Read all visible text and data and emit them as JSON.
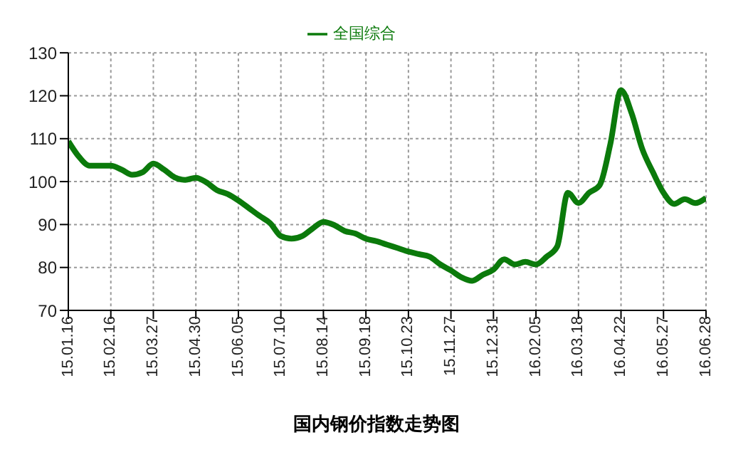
{
  "chart_data": {
    "type": "line",
    "title": "国内钢价指数走势图",
    "categories": [
      "15.01.16",
      null,
      null,
      null,
      "15.02.16",
      null,
      null,
      null,
      "15.03.27",
      null,
      null,
      null,
      "15.04.30",
      null,
      null,
      null,
      "15.06.05",
      null,
      null,
      null,
      "15.07.10",
      null,
      null,
      null,
      "15.08.14",
      null,
      null,
      null,
      "15.09.18",
      null,
      null,
      null,
      "15.10.23",
      null,
      null,
      null,
      "15.11.27",
      null,
      null,
      null,
      "15.12.31",
      null,
      null,
      null,
      "16.02.05",
      null,
      null,
      null,
      "16.03.18",
      null,
      null,
      null,
      "16.04.22",
      null,
      null,
      null,
      "16.05.27",
      null,
      null,
      null,
      "16.06.28"
    ],
    "series": [
      {
        "name": "全国综合",
        "color": "#0b7a0b",
        "values": [
          109.4,
          105.8,
          103.7,
          103.7,
          103.7,
          102.8,
          101.6,
          102.2,
          104.2,
          102.8,
          101,
          100.4,
          100.9,
          99.8,
          98,
          97.1,
          95.6,
          93.8,
          92,
          90.3,
          87.3,
          86.7,
          87.3,
          89.1,
          90.6,
          89.9,
          88.5,
          87.9,
          86.7,
          86.1,
          85.3,
          84.5,
          83.7,
          83.1,
          82.5,
          80.7,
          79.3,
          77.7,
          76.9,
          78.3,
          79.5,
          81.9,
          80.7,
          81.3,
          80.7,
          82.5,
          84.9,
          97.4,
          95,
          97.4,
          99.2,
          108.8,
          121.3,
          115.9,
          107.6,
          102.2,
          97.4,
          94.8,
          95.9,
          95,
          96.2
        ]
      }
    ],
    "ylim": [
      70,
      130
    ],
    "yticks": [
      70,
      80,
      90,
      100,
      110,
      120,
      130
    ],
    "grid": true,
    "legend": "top",
    "marker": "none",
    "line_style": "solid"
  }
}
